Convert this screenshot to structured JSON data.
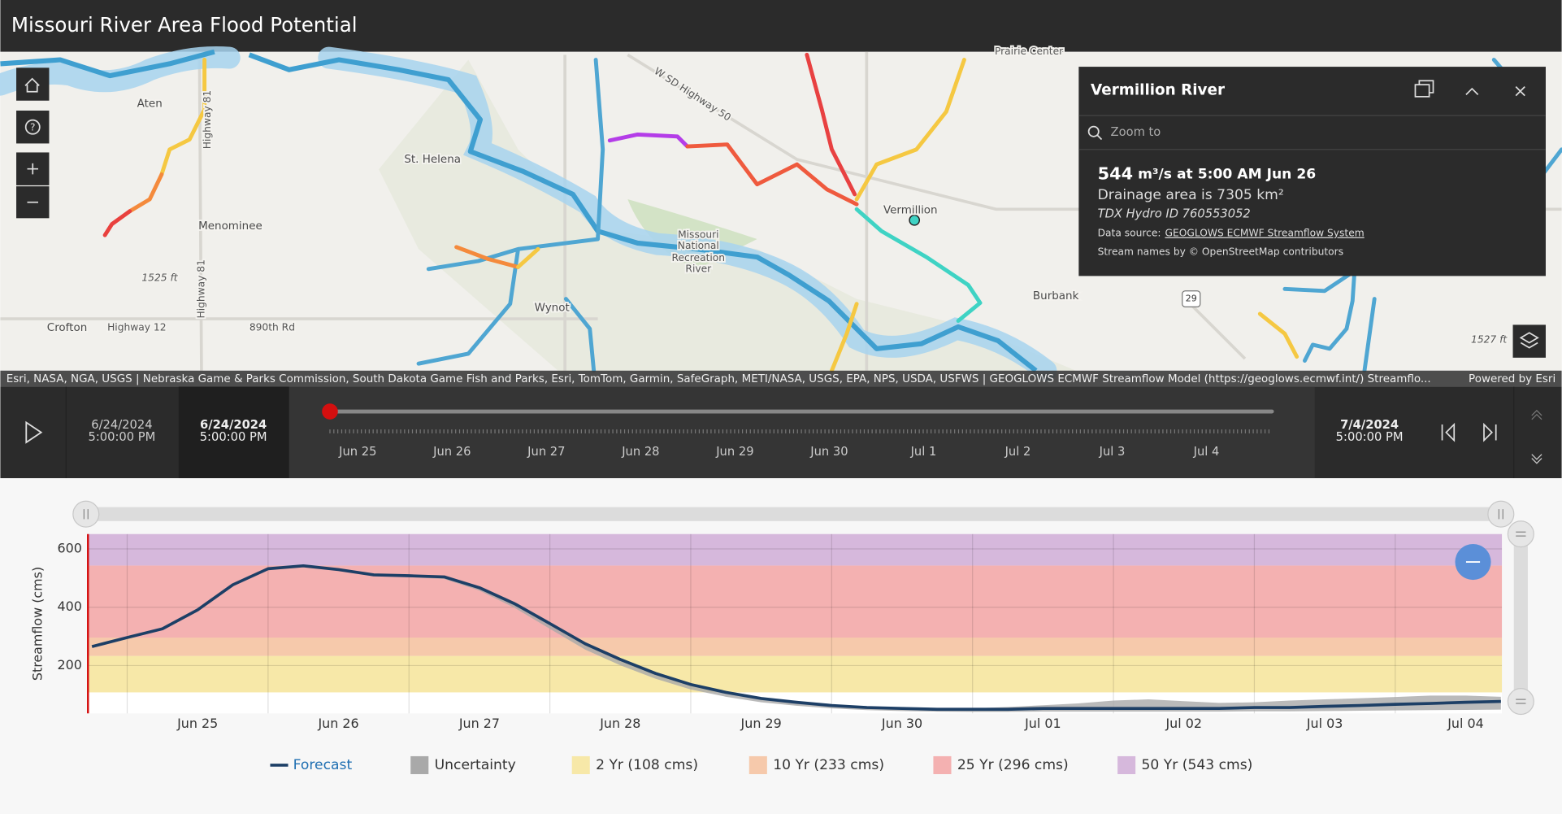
{
  "header": {
    "title": "Missouri River Area Flood Potential"
  },
  "map": {
    "labels": [
      "Aten",
      "St. Helena",
      "Menominee",
      "Crofton",
      "Highway 12",
      "890th Rd",
      "Wynot",
      "Missouri",
      "National",
      "Recreation",
      "River",
      "Vermillion",
      "Burbank",
      "1525 ft",
      "1527 ft",
      "Highway 81",
      "Highway 81",
      "W SD Highway 50",
      "29",
      "Prairie Center"
    ],
    "attribution": "Esri, NASA, NGA, USGS | Nebraska Game & Parks Commission, South Dakota Game Fish and Parks, Esri, TomTom, Garmin, SafeGraph, METI/NASA, USGS, EPA, NPS, USDA, USFWS | GEOGLOWS ECMWF Streamflow Model (https://geoglows.ecmwf.int/) Streamflo...",
    "powered_by": "Powered by Esri"
  },
  "popup": {
    "title": "Vermillion River",
    "zoom_to": "Zoom to",
    "flow_value": 544,
    "flow_text": "m³/s at 5:00 AM Jun 26",
    "drainage": "Drainage area is 7305 km²",
    "hydro_id": "TDX Hydro ID 760553052",
    "source_label": "Data source:",
    "source_link": "GEOGLOWS ECMWF Streamflow System",
    "credits": "Stream names by © OpenStreetMap contributors"
  },
  "time_slider": {
    "start_date": "6/24/2024",
    "start_time": "5:00:00 PM",
    "current_date": "6/24/2024",
    "current_time": "5:00:00 PM",
    "end_date": "7/4/2024",
    "end_time": "5:00:00 PM",
    "ticks": [
      "Jun 25",
      "Jun 26",
      "Jun 27",
      "Jun 28",
      "Jun 29",
      "Jun 30",
      "Jul 1",
      "Jul 2",
      "Jul 3",
      "Jul 4"
    ]
  },
  "chart_data": {
    "type": "line",
    "y_label": "Streamflow (cms)",
    "categories": [
      null,
      null,
      null,
      "Jun 25",
      null,
      null,
      null,
      "Jun 26",
      null,
      null,
      null,
      "Jun 27",
      null,
      null,
      null,
      "Jun 28",
      null,
      null,
      null,
      "Jun 29",
      null,
      null,
      null,
      "Jun 30",
      null,
      null,
      null,
      "Jul 01",
      null,
      null,
      null,
      "Jul 02",
      null,
      null,
      null,
      "Jul 03",
      null,
      null,
      null,
      "Jul 04",
      null
    ],
    "series": [
      {
        "name": "Forecast",
        "color": "#1d3f66",
        "values": [
          265,
          296,
          326,
          391,
          477,
          532,
          542,
          529,
          511,
          508,
          504,
          467,
          412,
          344,
          275,
          221,
          173,
          135,
          108,
          87,
          74,
          63,
          56,
          53,
          50,
          50,
          50,
          53,
          53,
          53,
          53,
          53,
          53,
          56,
          56,
          60,
          63,
          67,
          70,
          74,
          77
        ]
      },
      {
        "name": "Uncertainty",
        "color": "#a9a9a9",
        "high": [
          265,
          296,
          326,
          391,
          477,
          532,
          542,
          529,
          511,
          508,
          504,
          467,
          414,
          348,
          280,
          226,
          178,
          140,
          112,
          91,
          78,
          66,
          58,
          55,
          52,
          53,
          58,
          64,
          70,
          80,
          84,
          78,
          72,
          74,
          80,
          84,
          88,
          92,
          97,
          97,
          93
        ],
        "low": [
          265,
          296,
          326,
          391,
          477,
          532,
          542,
          529,
          508,
          503,
          497,
          457,
          398,
          326,
          255,
          201,
          155,
          118,
          93,
          74,
          62,
          53,
          47,
          44,
          42,
          41,
          41,
          42,
          42,
          42,
          42,
          42,
          42,
          43,
          43,
          44,
          45,
          46,
          47,
          48,
          49
        ]
      }
    ],
    "thresholds": [
      {
        "name": "2 Yr (108 cms)",
        "value": 108,
        "color": "#f7e8a8"
      },
      {
        "name": "10 Yr (233 cms)",
        "value": 233,
        "color": "#f6c9ab"
      },
      {
        "name": "25 Yr (296 cms)",
        "value": 296,
        "color": "#f4b1b1"
      },
      {
        "name": "50 Yr (543 cms)",
        "value": 543,
        "color": "#d6b8dc"
      }
    ],
    "ylim": [
      36,
      651
    ],
    "yticks": [
      200,
      400,
      600
    ],
    "grid": true
  }
}
